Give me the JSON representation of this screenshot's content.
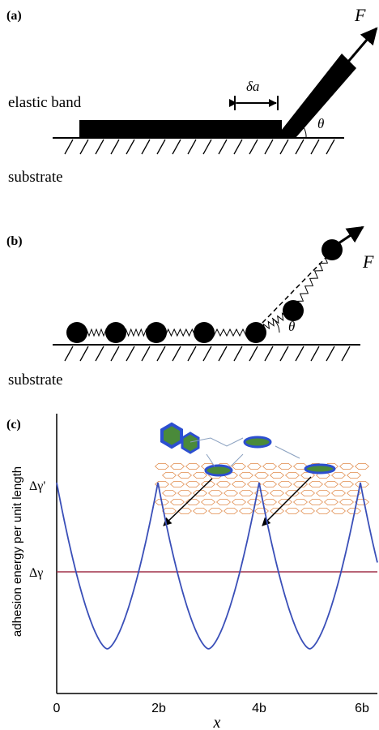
{
  "panel_a": {
    "label": "(a)",
    "force": "F",
    "delta": "δa",
    "band": "elastic band",
    "angle": "θ",
    "substrate": "substrate"
  },
  "panel_b": {
    "label": "(b)",
    "force": "F",
    "angle": "θ",
    "substrate": "substrate"
  },
  "panel_c": {
    "label": "(c)",
    "y_label": "adhesion energy per unit length",
    "y_ticks": [
      "Δγ'",
      "Δγ"
    ],
    "x_ticks": [
      "0",
      "2b",
      "4b",
      "6b"
    ],
    "x_label": "x"
  }
}
